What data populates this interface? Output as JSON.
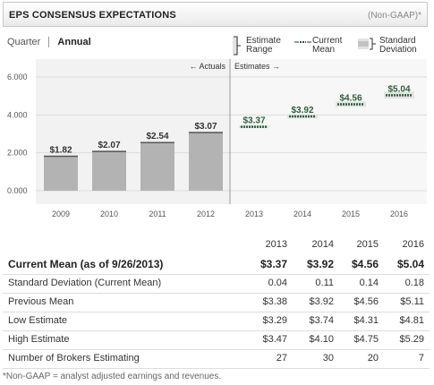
{
  "header": {
    "title": "EPS CONSENSUS EXPECTATIONS",
    "note": "(Non-GAAP)*"
  },
  "tabs": [
    {
      "label": "Quarter",
      "active": false
    },
    {
      "label": "Annual",
      "active": true
    }
  ],
  "legend": {
    "estimate_range": "Estimate Range",
    "current_mean": "Current Mean",
    "standard_deviation": "Standard Deviation"
  },
  "chart_data": {
    "type": "bar",
    "categories": [
      "2009",
      "2010",
      "2011",
      "2012",
      "2013",
      "2014",
      "2015",
      "2016"
    ],
    "actuals": [
      {
        "year": "2009",
        "value": 1.82,
        "label": "$1.82"
      },
      {
        "year": "2010",
        "value": 2.07,
        "label": "$2.07"
      },
      {
        "year": "2011",
        "value": 2.54,
        "label": "$2.54"
      },
      {
        "year": "2012",
        "value": 3.07,
        "label": "$3.07"
      }
    ],
    "estimates": [
      {
        "year": "2013",
        "mean": 3.37,
        "label": "$3.37",
        "std": 0.04
      },
      {
        "year": "2014",
        "mean": 3.92,
        "label": "$3.92",
        "std": 0.11
      },
      {
        "year": "2015",
        "mean": 4.56,
        "label": "$4.56",
        "std": 0.14
      },
      {
        "year": "2016",
        "mean": 5.04,
        "label": "$5.04",
        "std": 0.18
      }
    ],
    "yticks": [
      "0.000",
      "2.000",
      "4.000",
      "6.000"
    ],
    "ylim": [
      0,
      6
    ],
    "actuals_label": "← Actuals",
    "estimates_label": "Estimates →",
    "grid": true,
    "colors": {
      "bar": "#b3b3b3",
      "estimate": "#2e5e3a",
      "plot_bg": "#f2f2f2",
      "divider": "#999999"
    }
  },
  "table": {
    "years": [
      "2013",
      "2014",
      "2015",
      "2016"
    ],
    "rows": [
      {
        "label": "Current Mean (as of 9/26/2013)",
        "values": [
          "$3.37",
          "$3.92",
          "$4.56",
          "$5.04"
        ],
        "bold": true
      },
      {
        "label": "Standard Deviation (Current Mean)",
        "values": [
          "0.04",
          "0.11",
          "0.14",
          "0.18"
        ],
        "bold": false
      },
      {
        "label": "Previous Mean",
        "values": [
          "$3.38",
          "$3.92",
          "$4.56",
          "$5.11"
        ],
        "bold": false
      },
      {
        "label": "Low Estimate",
        "values": [
          "$3.29",
          "$3.74",
          "$4.31",
          "$4.81"
        ],
        "bold": false
      },
      {
        "label": "High Estimate",
        "values": [
          "$3.47",
          "$4.10",
          "$4.75",
          "$5.29"
        ],
        "bold": false
      },
      {
        "label": "Number of Brokers Estimating",
        "values": [
          "27",
          "30",
          "20",
          "7"
        ],
        "bold": false
      }
    ]
  },
  "footnote": "*Non-GAAP = analyst adjusted earnings and revenues."
}
